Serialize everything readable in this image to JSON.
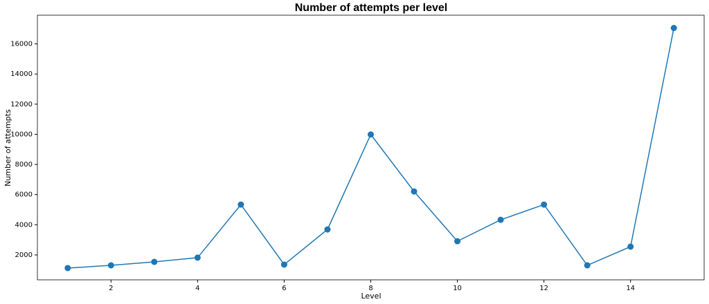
{
  "chart_data": {
    "type": "line",
    "title": "Number of attempts per level",
    "x_label": "Level",
    "y_label": "Number of attempts",
    "x": [
      1,
      2,
      3,
      4,
      5,
      6,
      7,
      8,
      9,
      10,
      11,
      12,
      13,
      14,
      15
    ],
    "series": [
      {
        "name": "attempts",
        "color": "#1f77b4",
        "values": [
          1130,
          1310,
          1540,
          1820,
          5340,
          1360,
          3690,
          9990,
          6210,
          2910,
          4330,
          5340,
          1310,
          2550,
          17050
        ]
      }
    ],
    "xlim": [
      0.3,
      15.7
    ],
    "xticks": [
      2,
      4,
      6,
      8,
      10,
      12,
      14
    ],
    "ylim": [
      350,
      17900
    ],
    "yticks": [
      2000,
      4000,
      6000,
      8000,
      10000,
      12000,
      14000,
      16000
    ],
    "grid": false,
    "markers": true
  }
}
